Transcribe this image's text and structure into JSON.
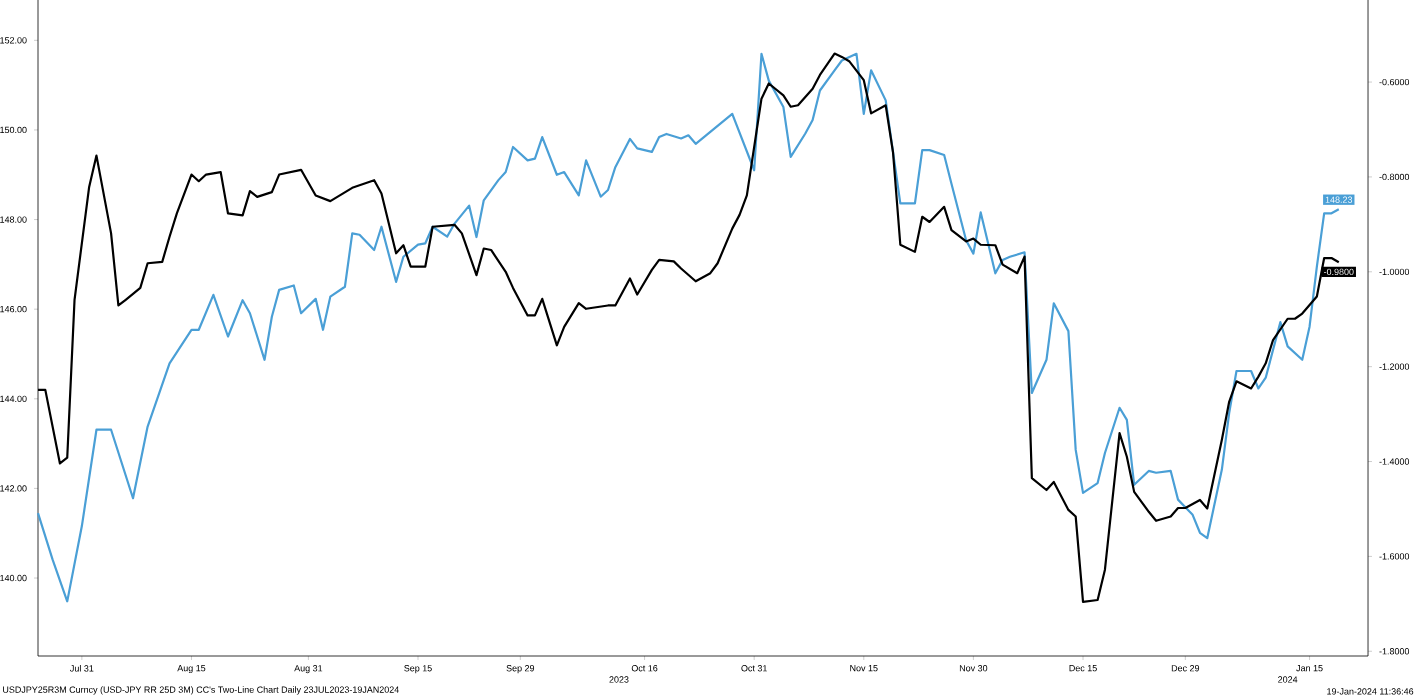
{
  "chart_data": {
    "type": "line",
    "xlim": [
      "2023-07-25",
      "2024-01-23"
    ],
    "xticks": [
      {
        "value": "2023-07-31",
        "label": "Jul 31"
      },
      {
        "value": "2023-08-15",
        "label": "Aug 15"
      },
      {
        "value": "2023-08-31",
        "label": "Aug 31"
      },
      {
        "value": "2023-09-15",
        "label": "Sep 15"
      },
      {
        "value": "2023-09-29",
        "label": "Sep 29"
      },
      {
        "value": "2023-10-16",
        "label": "Oct 16"
      },
      {
        "value": "2023-10-31",
        "label": "Oct 31"
      },
      {
        "value": "2023-11-15",
        "label": "Nov 15"
      },
      {
        "value": "2023-11-30",
        "label": "Nov 30"
      },
      {
        "value": "2023-12-15",
        "label": "Dec 15"
      },
      {
        "value": "2023-12-29",
        "label": "Dec 29"
      },
      {
        "value": "2024-01-15",
        "label": "Jan 15"
      }
    ],
    "ylim": [
      138.26,
      152.9
    ],
    "yticks": [
      {
        "value": 140,
        "label": "140.00"
      },
      {
        "value": 142,
        "label": "142.00"
      },
      {
        "value": 144,
        "label": "144.00"
      },
      {
        "value": 146,
        "label": "146.00"
      },
      {
        "value": 148,
        "label": "148.00"
      },
      {
        "value": 150,
        "label": "150.00"
      },
      {
        "value": 152,
        "label": "152.00"
      }
    ],
    "y2lim": [
      -1.81,
      -0.427
    ],
    "y2ticks": [
      {
        "value": -0.6,
        "label": "-0.6000"
      },
      {
        "value": -0.8,
        "label": "-0.8000"
      },
      {
        "value": -1.0,
        "label": "-1.0000"
      },
      {
        "value": -1.2,
        "label": "-1.2000"
      },
      {
        "value": -1.4,
        "label": "-1.4000"
      },
      {
        "value": -1.6,
        "label": "-1.6000"
      },
      {
        "value": -1.8,
        "label": "-1.8000"
      }
    ],
    "series": [
      {
        "color": "#4a9fd6",
        "axis": "y",
        "x": [
          "2023-07-25",
          "2023-07-27",
          "2023-07-29",
          "2023-07-31",
          "2023-08-02",
          "2023-08-04",
          "2023-08-07",
          "2023-08-09",
          "2023-08-12",
          "2023-08-15",
          "2023-08-16",
          "2023-08-18",
          "2023-08-20",
          "2023-08-22",
          "2023-08-23",
          "2023-08-25",
          "2023-08-26",
          "2023-08-27",
          "2023-08-29",
          "2023-08-30",
          "2023-09-01",
          "2023-09-02",
          "2023-09-03",
          "2023-09-05",
          "2023-09-06",
          "2023-09-07",
          "2023-09-09",
          "2023-09-10",
          "2023-09-12",
          "2023-09-13",
          "2023-09-15",
          "2023-09-16",
          "2023-09-17",
          "2023-09-19",
          "2023-09-20",
          "2023-09-22",
          "2023-09-23",
          "2023-09-24",
          "2023-09-26",
          "2023-09-27",
          "2023-09-28",
          "2023-09-30",
          "2023-10-01",
          "2023-10-02",
          "2023-10-04",
          "2023-10-05",
          "2023-10-07",
          "2023-10-08",
          "2023-10-10",
          "2023-10-11",
          "2023-10-12",
          "2023-10-14",
          "2023-10-15",
          "2023-10-17",
          "2023-10-18",
          "2023-10-19",
          "2023-10-21",
          "2023-10-22",
          "2023-10-23",
          "2023-10-28",
          "2023-10-31",
          "2023-11-01",
          "2023-11-02",
          "2023-11-04",
          "2023-11-05",
          "2023-11-07",
          "2023-11-08",
          "2023-11-09",
          "2023-11-11",
          "2023-11-12",
          "2023-11-14",
          "2023-11-15",
          "2023-11-16",
          "2023-11-18",
          "2023-11-20",
          "2023-11-22",
          "2023-11-23",
          "2023-11-24",
          "2023-11-26",
          "2023-11-27",
          "2023-11-29",
          "2023-11-30",
          "2023-12-01",
          "2023-12-03",
          "2023-12-04",
          "2023-12-05",
          "2023-12-07",
          "2023-12-08",
          "2023-12-10",
          "2023-12-11",
          "2023-12-13",
          "2023-12-14",
          "2023-12-15",
          "2023-12-17",
          "2023-12-18",
          "2023-12-20",
          "2023-12-21",
          "2023-12-22",
          "2023-12-24",
          "2023-12-25",
          "2023-12-27",
          "2023-12-28",
          "2023-12-30",
          "2023-12-31",
          "2024-01-01",
          "2024-01-03",
          "2024-01-04",
          "2024-01-05",
          "2024-01-07",
          "2024-01-08",
          "2024-01-09",
          "2024-01-11",
          "2024-01-12",
          "2024-01-14",
          "2024-01-15",
          "2024-01-16",
          "2024-01-17",
          "2024-01-18",
          "2024-01-19"
        ],
        "values": [
          141.45,
          140.41,
          139.48,
          141.16,
          143.31,
          143.31,
          141.78,
          143.38,
          144.79,
          145.54,
          145.54,
          146.32,
          145.39,
          146.2,
          145.91,
          144.87,
          145.83,
          146.43,
          146.53,
          145.91,
          146.23,
          145.54,
          146.28,
          146.5,
          147.69,
          147.66,
          147.32,
          147.84,
          146.61,
          147.17,
          147.44,
          147.47,
          147.84,
          147.62,
          147.91,
          148.31,
          147.61,
          148.43,
          148.88,
          149.06,
          149.62,
          149.32,
          149.36,
          149.84,
          149.0,
          149.06,
          148.54,
          149.32,
          148.51,
          148.66,
          149.17,
          149.8,
          149.59,
          149.51,
          149.84,
          149.91,
          149.81,
          149.88,
          149.69,
          150.36,
          149.1,
          151.7,
          151.1,
          150.51,
          149.4,
          149.92,
          150.22,
          150.88,
          151.33,
          151.55,
          151.7,
          150.36,
          151.33,
          150.66,
          148.36,
          148.36,
          149.55,
          149.55,
          149.44,
          148.8,
          147.54,
          147.24,
          148.16,
          146.8,
          147.1,
          147.17,
          147.27,
          144.13,
          144.87,
          146.13,
          145.51,
          142.86,
          141.9,
          142.12,
          142.79,
          143.8,
          143.53,
          142.08,
          142.39,
          142.35,
          142.39,
          141.75,
          141.41,
          141.01,
          140.89,
          142.42,
          143.68,
          144.62,
          144.62,
          144.23,
          144.47,
          145.71,
          145.17,
          144.87,
          145.61,
          146.95,
          148.14,
          148.14,
          148.23
        ],
        "value_labels": [
          null,
          null,
          null,
          null,
          null,
          null,
          null,
          null,
          null,
          null,
          null,
          null,
          null,
          null,
          null,
          null,
          null,
          null,
          null,
          null,
          null,
          null,
          null,
          null,
          null,
          null,
          null,
          null,
          null,
          null,
          null,
          null,
          null,
          null,
          null,
          null,
          null,
          null,
          null,
          null,
          null,
          null,
          null,
          null,
          null,
          null,
          null,
          null,
          null,
          null,
          null,
          null,
          null,
          null,
          null,
          null,
          null,
          null,
          null,
          null,
          null,
          null,
          null,
          null,
          null,
          null,
          null,
          null,
          null,
          null,
          null,
          null,
          null,
          null,
          null,
          null,
          null,
          null,
          null,
          null,
          null,
          null,
          null,
          null,
          null,
          null,
          null,
          null,
          null,
          null,
          null,
          null,
          null,
          null,
          null,
          null,
          null,
          null,
          null,
          null,
          null,
          null,
          null,
          null,
          null,
          null,
          null,
          null,
          null,
          null,
          null,
          null,
          null,
          null,
          null,
          null,
          null,
          null,
          "148.23"
        ]
      },
      {
        "color": "#000000",
        "axis": "y2",
        "x": [
          "2023-07-25",
          "2023-07-26",
          "2023-07-28",
          "2023-07-29",
          "2023-07-30",
          "2023-08-01",
          "2023-08-02",
          "2023-08-04",
          "2023-08-05",
          "2023-08-06",
          "2023-08-08",
          "2023-08-09",
          "2023-08-11",
          "2023-08-12",
          "2023-08-13",
          "2023-08-15",
          "2023-08-16",
          "2023-08-17",
          "2023-08-19",
          "2023-08-20",
          "2023-08-22",
          "2023-08-23",
          "2023-08-24",
          "2023-08-26",
          "2023-08-27",
          "2023-08-30",
          "2023-09-01",
          "2023-09-03",
          "2023-09-06",
          "2023-09-09",
          "2023-09-10",
          "2023-09-12",
          "2023-09-13",
          "2023-09-14",
          "2023-09-16",
          "2023-09-17",
          "2023-09-20",
          "2023-09-21",
          "2023-09-23",
          "2023-09-24",
          "2023-09-25",
          "2023-09-27",
          "2023-09-28",
          "2023-09-30",
          "2023-10-01",
          "2023-10-02",
          "2023-10-04",
          "2023-10-05",
          "2023-10-07",
          "2023-10-08",
          "2023-10-11",
          "2023-10-12",
          "2023-10-14",
          "2023-10-15",
          "2023-10-17",
          "2023-10-18",
          "2023-10-20",
          "2023-10-21",
          "2023-10-23",
          "2023-10-25",
          "2023-10-26",
          "2023-10-28",
          "2023-10-29",
          "2023-10-30",
          "2023-11-01",
          "2023-11-02",
          "2023-11-04",
          "2023-11-05",
          "2023-11-06",
          "2023-11-08",
          "2023-11-09",
          "2023-11-11",
          "2023-11-12",
          "2023-11-13",
          "2023-11-15",
          "2023-11-16",
          "2023-11-18",
          "2023-11-19",
          "2023-11-20",
          "2023-11-22",
          "2023-11-23",
          "2023-11-24",
          "2023-11-26",
          "2023-11-27",
          "2023-11-29",
          "2023-11-30",
          "2023-12-01",
          "2023-12-03",
          "2023-12-04",
          "2023-12-06",
          "2023-12-07",
          "2023-12-08",
          "2023-12-10",
          "2023-12-11",
          "2023-12-13",
          "2023-12-14",
          "2023-12-15",
          "2023-12-17",
          "2023-12-18",
          "2023-12-20",
          "2023-12-21",
          "2023-12-22",
          "2023-12-24",
          "2023-12-25",
          "2023-12-27",
          "2023-12-28",
          "2023-12-29",
          "2023-12-31",
          "2024-01-01",
          "2024-01-03",
          "2024-01-04",
          "2024-01-05",
          "2024-01-07",
          "2024-01-08",
          "2024-01-09",
          "2024-01-10",
          "2024-01-12",
          "2024-01-13",
          "2024-01-14",
          "2024-01-16",
          "2024-01-17",
          "2024-01-18",
          "2024-01-19"
        ],
        "values": [
          -1.249,
          -1.249,
          -1.404,
          -1.392,
          -1.059,
          -0.821,
          -0.755,
          -0.919,
          -1.071,
          -1.059,
          -1.034,
          -0.982,
          -0.979,
          -0.926,
          -0.877,
          -0.795,
          -0.809,
          -0.795,
          -0.79,
          -0.877,
          -0.881,
          -0.83,
          -0.842,
          -0.832,
          -0.795,
          -0.785,
          -0.839,
          -0.851,
          -0.823,
          -0.807,
          -0.835,
          -0.961,
          -0.944,
          -0.989,
          -0.989,
          -0.905,
          -0.901,
          -0.919,
          -1.007,
          -0.951,
          -0.954,
          -1.0,
          -1.034,
          -1.092,
          -1.092,
          -1.057,
          -1.155,
          -1.116,
          -1.066,
          -1.078,
          -1.071,
          -1.071,
          -1.014,
          -1.048,
          -0.996,
          -0.975,
          -0.978,
          -0.993,
          -1.02,
          -1.003,
          -0.982,
          -0.909,
          -0.88,
          -0.839,
          -0.635,
          -0.603,
          -0.628,
          -0.652,
          -0.649,
          -0.614,
          -0.585,
          -0.54,
          -0.547,
          -0.556,
          -0.596,
          -0.666,
          -0.649,
          -0.748,
          -0.943,
          -0.958,
          -0.884,
          -0.895,
          -0.863,
          -0.912,
          -0.936,
          -0.93,
          -0.943,
          -0.944,
          -0.985,
          -1.003,
          -0.968,
          -1.435,
          -1.46,
          -1.443,
          -1.502,
          -1.516,
          -1.696,
          -1.692,
          -1.628,
          -1.34,
          -1.39,
          -1.464,
          -1.506,
          -1.525,
          -1.516,
          -1.498,
          -1.498,
          -1.481,
          -1.499,
          -1.354,
          -1.274,
          -1.231,
          -1.246,
          -1.221,
          -1.193,
          -1.144,
          -1.099,
          -1.099,
          -1.088,
          -1.052,
          -0.971,
          -0.971,
          -0.98
        ],
        "value_labels": [
          null,
          null,
          null,
          null,
          null,
          null,
          null,
          null,
          null,
          null,
          null,
          null,
          null,
          null,
          null,
          null,
          null,
          null,
          null,
          null,
          null,
          null,
          null,
          null,
          null,
          null,
          null,
          null,
          null,
          null,
          null,
          null,
          null,
          null,
          null,
          null,
          null,
          null,
          null,
          null,
          null,
          null,
          null,
          null,
          null,
          null,
          null,
          null,
          null,
          null,
          null,
          null,
          null,
          null,
          null,
          null,
          null,
          null,
          null,
          null,
          null,
          null,
          null,
          null,
          null,
          null,
          null,
          null,
          null,
          null,
          null,
          null,
          null,
          null,
          null,
          null,
          null,
          null,
          null,
          null,
          null,
          null,
          null,
          null,
          null,
          null,
          null,
          null,
          null,
          null,
          null,
          null,
          null,
          null,
          null,
          null,
          null,
          null,
          null,
          null,
          null,
          null,
          null,
          null,
          null,
          null,
          null,
          null,
          null,
          null,
          null,
          null,
          null,
          null,
          null,
          null,
          null,
          null,
          null,
          null,
          null,
          null,
          "-0.9800"
        ]
      }
    ],
    "annotations": [
      "2023",
      "2024",
      "USDJPY25R3M Curncy (USD-JPY RR 25D 3M) CC's Two-Line Chart  Daily 23JUL2023-19JAN2024",
      "19-Jan-2024 11:36:46"
    ]
  }
}
